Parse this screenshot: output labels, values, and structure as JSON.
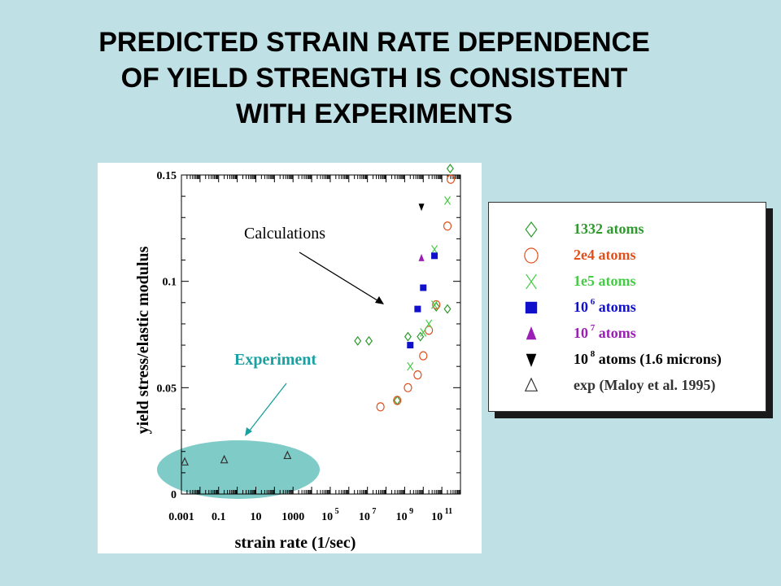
{
  "title_lines": [
    "PREDICTED STRAIN RATE DEPENDENCE",
    "OF YIELD STRENGTH IS CONSISTENT",
    "WITH EXPERIMENTS"
  ],
  "chart_data": {
    "type": "scatter",
    "xlabel": "strain rate (1/sec)",
    "ylabel": "yield stress/elastic modulus",
    "x_scale": "log",
    "xlim": [
      0.001,
      1000000000000.0
    ],
    "ylim": [
      0,
      0.15
    ],
    "x_ticks": [
      {
        "value": 0.001,
        "base": "0.001",
        "exp": ""
      },
      {
        "value": 0.1,
        "base": "0.1",
        "exp": ""
      },
      {
        "value": 10,
        "base": "10",
        "exp": ""
      },
      {
        "value": 1000,
        "base": "1000",
        "exp": ""
      },
      {
        "value": 100000,
        "base": "10",
        "exp": "5"
      },
      {
        "value": 10000000,
        "base": "10",
        "exp": "7"
      },
      {
        "value": 1000000000,
        "base": "10",
        "exp": "9"
      },
      {
        "value": 100000000000,
        "base": "10",
        "exp": "11"
      }
    ],
    "y_ticks": [
      {
        "value": 0,
        "label": "0"
      },
      {
        "value": 0.05,
        "label": "0.05"
      },
      {
        "value": 0.1,
        "label": "0.1"
      },
      {
        "value": 0.15,
        "label": "0.15"
      }
    ],
    "grid": false,
    "series": [
      {
        "name": "1332 atoms",
        "marker": "diamond",
        "color": "#2e9a2e",
        "points": [
          [
            3000000.0,
            0.072
          ],
          [
            12000000.0,
            0.072
          ],
          [
            400000000.0,
            0.044
          ],
          [
            1500000000.0,
            0.074
          ],
          [
            7000000000.0,
            0.074
          ],
          [
            50000000000.0,
            0.088
          ],
          [
            200000000000.0,
            0.087
          ],
          [
            280000000000.0,
            0.153
          ]
        ]
      },
      {
        "name": "2e4 atoms",
        "marker": "circle",
        "color": "#e0501c",
        "points": [
          [
            50000000.0,
            0.041
          ],
          [
            400000000.0,
            0.044
          ],
          [
            1500000000.0,
            0.05
          ],
          [
            5000000000.0,
            0.056
          ],
          [
            10000000000.0,
            0.065
          ],
          [
            20000000000.0,
            0.077
          ],
          [
            50000000000.0,
            0.089
          ],
          [
            200000000000.0,
            0.126
          ],
          [
            300000000000.0,
            0.148
          ]
        ]
      },
      {
        "name": "1e5 atoms",
        "marker": "x",
        "color": "#44cc44",
        "points": [
          [
            2000000000.0,
            0.06
          ],
          [
            10000000000.0,
            0.076
          ],
          [
            20000000000.0,
            0.08
          ],
          [
            40000000000.0,
            0.089
          ],
          [
            40000000000.0,
            0.115
          ],
          [
            200000000000.0,
            0.138
          ]
        ]
      },
      {
        "name": "10^6 atoms",
        "label_base": "10",
        "label_exp": "6",
        "label_rest": " atoms",
        "marker": "square",
        "color": "#1010cc",
        "points": [
          [
            2000000000.0,
            0.07
          ],
          [
            5000000000.0,
            0.087
          ],
          [
            10000000000.0,
            0.097
          ],
          [
            40000000000.0,
            0.112
          ]
        ]
      },
      {
        "name": "10^7 atoms",
        "label_base": "10",
        "label_exp": "7",
        "label_rest": " atoms",
        "marker": "triangle-up",
        "color": "#9b1fb5",
        "points": [
          [
            8000000000.0,
            0.111
          ]
        ]
      },
      {
        "name": "10^8 atoms (1.6 microns)",
        "label_base": "10",
        "label_exp": "8",
        "label_rest": " atoms (1.6 microns)",
        "marker": "triangle-down",
        "color": "#000000",
        "points": [
          [
            8000000000.0,
            0.135
          ]
        ]
      },
      {
        "name": "exp (Maloy et al. 1995)",
        "marker": "triangle-open",
        "color": "#333333",
        "points": [
          [
            0.0015,
            0.015
          ],
          [
            0.2,
            0.016
          ],
          [
            500,
            0.018
          ]
        ]
      }
    ],
    "legend_position": "right, outside plot",
    "annotations": [
      {
        "text": "Calculations",
        "color": "#000000"
      },
      {
        "text": "Experiment",
        "color": "#1aa0a0"
      }
    ],
    "colors": {
      "experiment_highlight": "#7fcbc8",
      "experiment_arrow": "#1aa0a0",
      "background": "#bfe0e4"
    }
  }
}
